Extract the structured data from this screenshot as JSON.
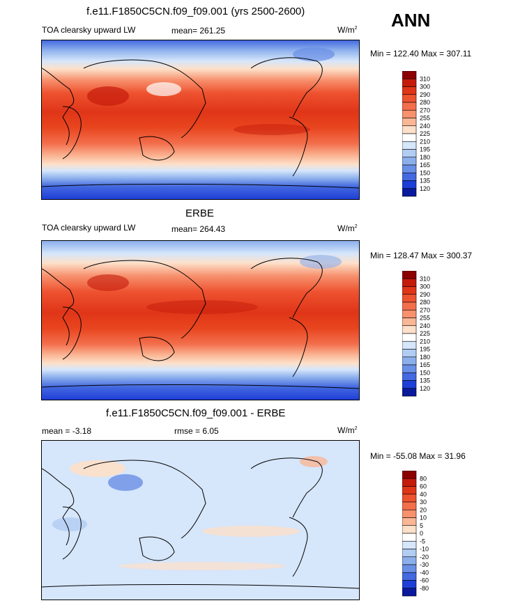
{
  "season": "ANN",
  "units_label": "W/m",
  "units_exp": "2",
  "panels": [
    {
      "title": "f.e11.F1850C5CN.f09_f09.001 (yrs 2500-2600)",
      "left_label": "TOA clearsky upward LW",
      "mid_label": "mean= 261.25",
      "minmax": "Min = 122.40 Max = 307.11"
    },
    {
      "title": "ERBE",
      "left_label": "TOA clearsky upward LW",
      "mid_label": "mean= 264.43",
      "minmax": "Min = 128.47 Max = 300.37"
    },
    {
      "title": "f.e11.F1850C5CN.f09_f09.001 - ERBE",
      "left_label": "mean =  -3.18",
      "mid_label": "rmse =   6.05",
      "minmax": "Min = -55.08 Max =  31.96"
    }
  ],
  "colorbar_abs": {
    "labels": [
      "310",
      "300",
      "290",
      "280",
      "270",
      "255",
      "240",
      "225",
      "210",
      "195",
      "180",
      "165",
      "150",
      "135",
      "120"
    ],
    "colors": [
      "#8b0000",
      "#c51b0b",
      "#e03518",
      "#ee5330",
      "#f36f4c",
      "#f7916e",
      "#fab796",
      "#fde0c9",
      "#ffffff",
      "#d6e6fb",
      "#b2cdf3",
      "#8cafec",
      "#6a8fe6",
      "#4469e0",
      "#1e3fd7",
      "#0a1a9c"
    ]
  },
  "colorbar_diff": {
    "labels": [
      "80",
      "60",
      "40",
      "30",
      "20",
      "10",
      "5",
      "0",
      "-5",
      "-10",
      "-20",
      "-30",
      "-40",
      "-60",
      "-80"
    ],
    "colors": [
      "#8b0000",
      "#c51b0b",
      "#e03518",
      "#ee5330",
      "#f36f4c",
      "#f7916e",
      "#fab796",
      "#fde0c9",
      "#ffffff",
      "#d6e6fb",
      "#b2cdf3",
      "#8cafec",
      "#6a8fe6",
      "#4469e0",
      "#1e3fd7",
      "#0a1a9c"
    ]
  },
  "chart_data": [
    {
      "type": "heatmap",
      "title": "f.e11.F1850C5CN.f09_f09.001 (yrs 2500-2600)",
      "variable": "TOA clearsky upward LW",
      "units": "W/m2",
      "mean": 261.25,
      "min": 122.4,
      "max": 307.11,
      "contour_levels": [
        120,
        135,
        150,
        165,
        180,
        195,
        210,
        225,
        240,
        255,
        270,
        280,
        290,
        300,
        310
      ]
    },
    {
      "type": "heatmap",
      "title": "ERBE",
      "variable": "TOA clearsky upward LW",
      "units": "W/m2",
      "mean": 264.43,
      "min": 128.47,
      "max": 300.37,
      "contour_levels": [
        120,
        135,
        150,
        165,
        180,
        195,
        210,
        225,
        240,
        255,
        270,
        280,
        290,
        300,
        310
      ]
    },
    {
      "type": "heatmap",
      "title": "f.e11.F1850C5CN.f09_f09.001 - ERBE",
      "units": "W/m2",
      "mean": -3.18,
      "rmse": 6.05,
      "min": -55.08,
      "max": 31.96,
      "contour_levels": [
        -80,
        -60,
        -40,
        -30,
        -20,
        -10,
        -5,
        0,
        5,
        10,
        20,
        30,
        40,
        60,
        80
      ]
    }
  ]
}
